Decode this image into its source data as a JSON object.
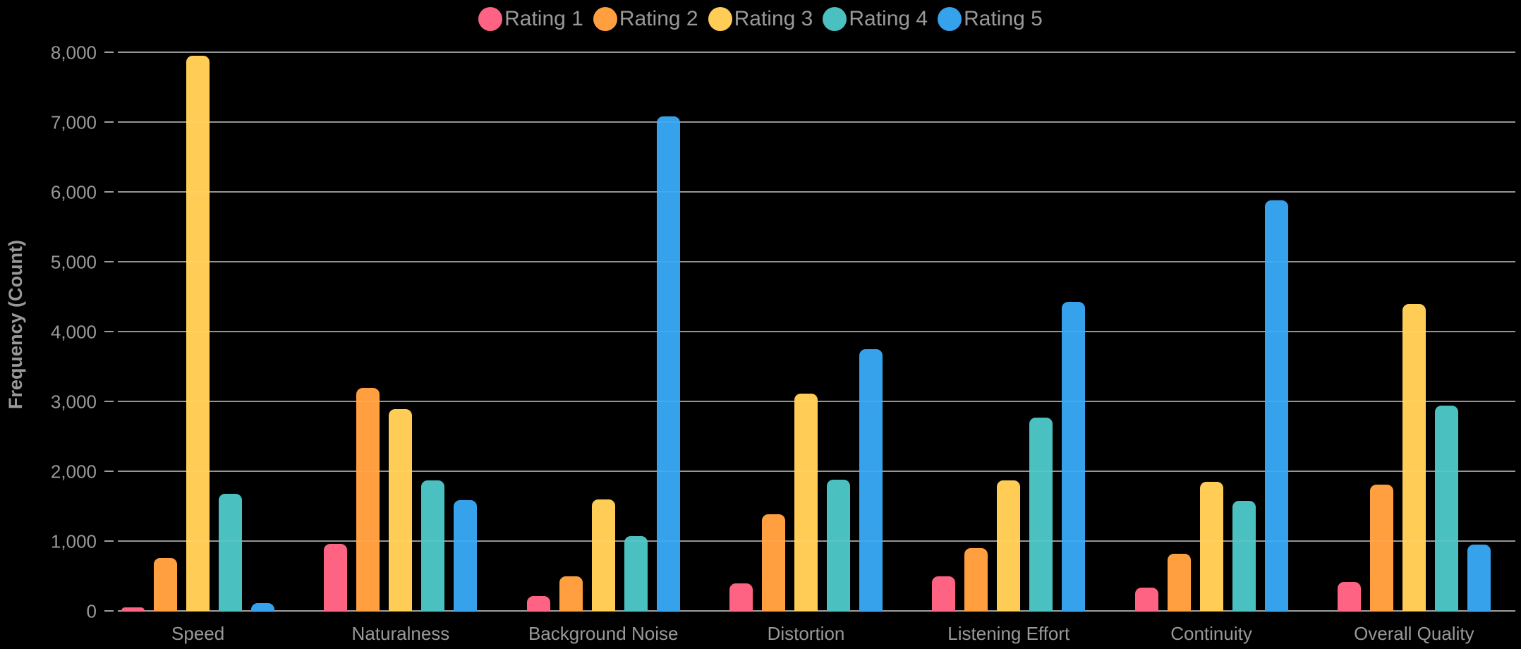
{
  "chart_data": {
    "type": "bar",
    "title": "",
    "categories": [
      "Speed",
      "Naturalness",
      "Background Noise",
      "Distortion",
      "Listening Effort",
      "Continuity",
      "Overall Quality"
    ],
    "series": [
      {
        "name": "Rating 1",
        "color": "#FF6384",
        "values": [
          50,
          960,
          210,
          390,
          500,
          330,
          410
        ]
      },
      {
        "name": "Rating 2",
        "color": "#FF9F40",
        "values": [
          760,
          3190,
          500,
          1380,
          900,
          820,
          1810
        ]
      },
      {
        "name": "Rating 3",
        "color": "#FFCD56",
        "values": [
          7950,
          2890,
          1600,
          3110,
          1870,
          1850,
          4390
        ]
      },
      {
        "name": "Rating 4",
        "color": "#4BC0C0",
        "values": [
          1680,
          1870,
          1070,
          1880,
          2770,
          1580,
          2940
        ]
      },
      {
        "name": "Rating 5",
        "color": "#36A2EB",
        "values": [
          110,
          1590,
          7080,
          3750,
          4420,
          5880,
          950
        ]
      }
    ],
    "xlabel": "",
    "ylabel": "Frequency (Count)",
    "ylim": [
      0,
      8000
    ],
    "yticks": [
      {
        "value": 0,
        "label": "0"
      },
      {
        "value": 1000,
        "label": "1,000"
      },
      {
        "value": 2000,
        "label": "2,000"
      },
      {
        "value": 3000,
        "label": "3,000"
      },
      {
        "value": 4000,
        "label": "4,000"
      },
      {
        "value": 5000,
        "label": "5,000"
      },
      {
        "value": 6000,
        "label": "6,000"
      },
      {
        "value": 7000,
        "label": "7,000"
      },
      {
        "value": 8000,
        "label": "8,000"
      }
    ],
    "grid": true,
    "legend_position": "top",
    "background_color": "#000000",
    "text_color": "#999999",
    "grid_color": "#8c8c8c"
  }
}
